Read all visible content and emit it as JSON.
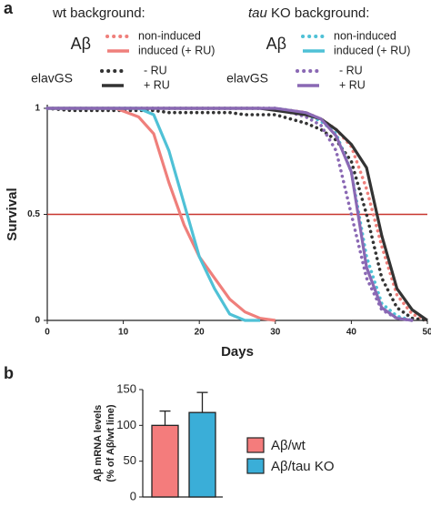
{
  "chart_data": [
    {
      "type": "line",
      "panel": "a",
      "xlabel": "Days",
      "ylabel": "Survival",
      "x": [
        0,
        3,
        6,
        9,
        12,
        14,
        16,
        18,
        20,
        22,
        24,
        26,
        28,
        30,
        32,
        34,
        36,
        38,
        40,
        42,
        44,
        46,
        48,
        50
      ],
      "xlim": [
        0,
        50
      ],
      "xticks": [
        0,
        10,
        20,
        30,
        40,
        50
      ],
      "ylim": [
        0,
        1
      ],
      "yticks": [
        0,
        0.5,
        1
      ],
      "hline": {
        "value": 0.5,
        "color": "#c8352e"
      },
      "series": [
        {
          "name": "non-induced",
          "color": "#ef7f7b",
          "dashed": true,
          "values": [
            1,
            1,
            1,
            1,
            1,
            1,
            1,
            1,
            1,
            1,
            1,
            1,
            1,
            1,
            0.99,
            0.98,
            0.95,
            0.9,
            0.82,
            0.62,
            0.35,
            0.12,
            0.03,
            0
          ]
        },
        {
          "name": "induced (+ RU)",
          "color": "#ef7f7b",
          "dashed": false,
          "values": [
            1,
            1,
            1,
            1,
            0.96,
            0.88,
            0.65,
            0.45,
            0.3,
            0.2,
            0.1,
            0.04,
            0.01,
            0,
            null,
            null,
            null,
            null,
            null,
            null,
            null,
            null,
            null,
            null
          ]
        },
        {
          "name": "- RU",
          "color": "#333333",
          "dashed": true,
          "values": [
            1,
            0.99,
            0.99,
            0.99,
            0.99,
            0.99,
            0.98,
            0.98,
            0.98,
            0.98,
            0.98,
            0.97,
            0.97,
            0.97,
            0.95,
            0.93,
            0.9,
            0.85,
            0.75,
            0.5,
            0.2,
            0.06,
            0.01,
            0
          ]
        },
        {
          "name": "+ RU",
          "color": "#333333",
          "dashed": false,
          "values": [
            1,
            1,
            1,
            1,
            1,
            1,
            1,
            1,
            1,
            1,
            1,
            1,
            1,
            0.99,
            0.98,
            0.97,
            0.95,
            0.9,
            0.83,
            0.72,
            0.4,
            0.15,
            0.05,
            0
          ]
        },
        {
          "name": "non-induced",
          "color": "#4fc1d6",
          "dashed": true,
          "values": [
            1,
            1,
            1,
            1,
            1,
            1,
            1,
            1,
            1,
            1,
            1,
            1,
            1,
            1,
            0.99,
            0.97,
            0.94,
            0.88,
            0.7,
            0.3,
            0.08,
            0.02,
            0,
            null
          ]
        },
        {
          "name": "induced (+ RU)",
          "color": "#4fc1d6",
          "dashed": false,
          "values": [
            1,
            1,
            1,
            1,
            1,
            0.97,
            0.8,
            0.55,
            0.3,
            0.15,
            0.03,
            0,
            0,
            null,
            null,
            null,
            null,
            null,
            null,
            null,
            null,
            null,
            null,
            null
          ]
        },
        {
          "name": "- RU",
          "color": "#8a68b4",
          "dashed": true,
          "values": [
            1,
            1,
            1,
            1,
            1,
            1,
            1,
            1,
            1,
            1,
            1,
            1,
            1,
            1,
            0.98,
            0.96,
            0.92,
            0.8,
            0.5,
            0.2,
            0.05,
            0.01,
            0,
            null
          ]
        },
        {
          "name": "+ RU",
          "color": "#8a68b4",
          "dashed": false,
          "values": [
            1,
            1,
            1,
            1,
            1,
            1,
            1,
            1,
            1,
            1,
            1,
            1,
            1,
            1,
            0.99,
            0.98,
            0.95,
            0.87,
            0.7,
            0.25,
            0.06,
            0.01,
            0,
            null
          ]
        }
      ],
      "legend_groups": [
        {
          "title": [
            {
              "text": "wt background:",
              "italic": false
            }
          ],
          "rows": [
            {
              "label": "Aβ",
              "color": "#ef7f7b"
            },
            {
              "label": "elavGS",
              "color": "#444444"
            }
          ]
        },
        {
          "title": [
            {
              "text": "tau",
              "italic": true
            },
            {
              "text": " KO background:",
              "italic": false
            }
          ],
          "rows": [
            {
              "label": "Aβ",
              "color": "#4fc1d6"
            },
            {
              "label": "elavGS",
              "color": "#8a68b4"
            }
          ]
        }
      ]
    },
    {
      "type": "bar",
      "panel": "b",
      "ylabel": [
        "Aβ mRNA levels",
        "(% of Aβ/wt line)"
      ],
      "categories": [
        "Aβ/wt",
        "Aβ/tau KO"
      ],
      "values": [
        100,
        118
      ],
      "errors": [
        20,
        28
      ],
      "colors": [
        "#f47c7c",
        "#3aaed8"
      ],
      "ylim": [
        0,
        150
      ],
      "yticks": [
        0,
        50,
        100,
        150
      ]
    }
  ]
}
